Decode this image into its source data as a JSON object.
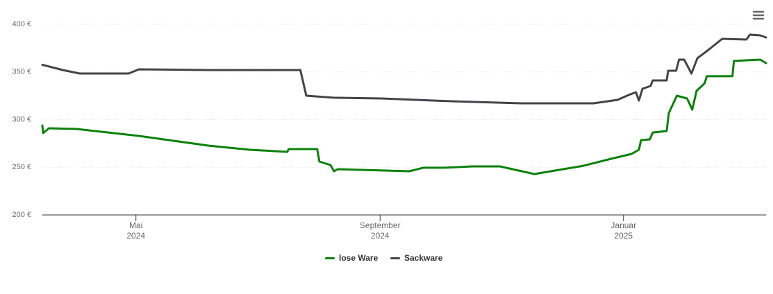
{
  "chart_data": {
    "type": "line",
    "xlim": [
      2024.205,
      2025.195
    ],
    "xticks": [
      {
        "value": 2024.333,
        "label": "Mai\n2024"
      },
      {
        "value": 2024.667,
        "label": "September\n2024"
      },
      {
        "value": 2025.0,
        "label": "Januar\n2025"
      }
    ],
    "ylim": [
      200,
      400
    ],
    "yticks": [
      {
        "value": 200,
        "label": "200 €"
      },
      {
        "value": 250,
        "label": "250 €"
      },
      {
        "value": 300,
        "label": "300 €"
      },
      {
        "value": 350,
        "label": "350 €"
      },
      {
        "value": 400,
        "label": "400 €"
      }
    ],
    "grid": true,
    "legend": "bottom",
    "series": [
      {
        "name": "lose Ware",
        "color": "#0b800b",
        "x": [
          2024.205,
          2024.206,
          2024.214,
          2024.252,
          2024.337,
          2024.432,
          2024.489,
          2024.54,
          2024.542,
          2024.581,
          2024.584,
          2024.599,
          2024.604,
          2024.609,
          2024.679,
          2024.707,
          2024.726,
          2024.755,
          2024.793,
          2024.831,
          2024.878,
          2024.945,
          2024.983,
          2025.011,
          2025.021,
          2025.024,
          2025.036,
          2025.04,
          2025.059,
          2025.062,
          2025.073,
          2025.087,
          2025.094,
          2025.1,
          2025.111,
          2025.114,
          2025.149,
          2025.151,
          2025.187,
          2025.195
        ],
        "values": [
          293.8,
          285.8,
          290.9,
          290.2,
          282.9,
          272.7,
          268.4,
          266.2,
          269.1,
          269.1,
          256,
          252.4,
          245.8,
          248,
          246.5,
          245.8,
          249.5,
          249.5,
          250.9,
          250.9,
          242.9,
          251.6,
          258.9,
          264,
          268.4,
          278.5,
          279.3,
          286.5,
          288,
          306.9,
          325.1,
          322.2,
          310.5,
          330.2,
          338.2,
          345.5,
          345.5,
          361.5,
          362.9,
          359.3
        ]
      },
      {
        "name": "Sackware",
        "color": "#434348",
        "x": [
          2024.205,
          2024.233,
          2024.256,
          2024.323,
          2024.337,
          2024.432,
          2024.558,
          2024.566,
          2024.603,
          2024.669,
          2024.764,
          2024.859,
          2024.959,
          2024.992,
          2025.007,
          2025.017,
          2025.021,
          2025.026,
          2025.037,
          2025.04,
          2025.059,
          2025.061,
          2025.072,
          2025.076,
          2025.083,
          2025.093,
          2025.101,
          2025.116,
          2025.135,
          2025.168,
          2025.173,
          2025.187,
          2025.195
        ],
        "values": [
          357.5,
          352,
          348.4,
          348.4,
          352.7,
          352,
          352,
          325.1,
          323,
          322.2,
          319.3,
          317.1,
          317.1,
          320.7,
          325.8,
          328.7,
          320,
          332.4,
          335.3,
          341.1,
          341.1,
          351.3,
          351.3,
          362.9,
          362.9,
          348.4,
          364.4,
          373.1,
          384.7,
          384,
          389.1,
          388.4,
          386.2
        ]
      }
    ]
  }
}
